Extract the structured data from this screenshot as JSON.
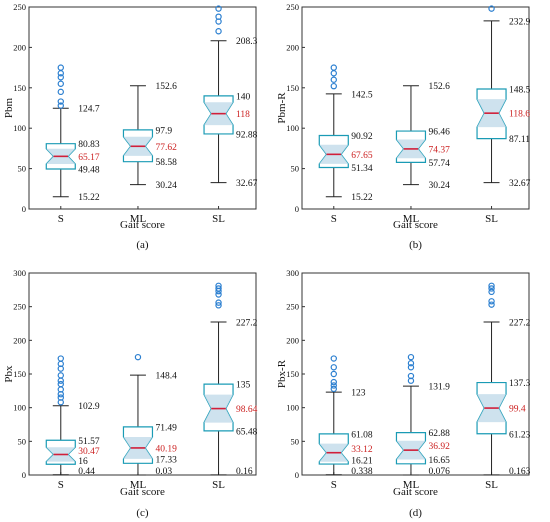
{
  "chart_data": [
    {
      "type": "box",
      "panel_label": "(a)",
      "xlabel": "Gait score",
      "ylabel": "Pbm",
      "ylim": [
        0,
        250
      ],
      "yticks": [
        0,
        50,
        100,
        150,
        200,
        250
      ],
      "categories": [
        "S",
        "ML",
        "SL"
      ],
      "boxes": [
        {
          "category": "S",
          "whisker_low": 15.22,
          "q1": 49.48,
          "median": 65.17,
          "q3": 80.83,
          "whisker_high": 124.7,
          "whisker_low_label": "15.22",
          "q1_label": "49.48",
          "median_label": "65.17",
          "q3_label": "80.83",
          "whisker_high_label": "124.7",
          "outliers": [
            128,
            133,
            145,
            155,
            163,
            168,
            175
          ]
        },
        {
          "category": "ML",
          "whisker_low": 30.24,
          "q1": 58.58,
          "median": 77.62,
          "q3": 97.9,
          "whisker_high": 152.6,
          "whisker_low_label": "30.24",
          "q1_label": "58.58",
          "median_label": "77.62",
          "q3_label": "97.9",
          "whisker_high_label": "152.6",
          "outliers": []
        },
        {
          "category": "SL",
          "whisker_low": 32.67,
          "q1": 92.88,
          "median": 118,
          "q3": 140,
          "whisker_high": 208.3,
          "whisker_low_label": "32.67",
          "q1_label": "92.88",
          "median_label": "118",
          "q3_label": "140",
          "whisker_high_label": "208.3",
          "outliers": [
            220,
            232,
            238,
            248
          ]
        }
      ]
    },
    {
      "type": "box",
      "panel_label": "(b)",
      "xlabel": "Gait score",
      "ylabel": "Pbm-R",
      "ylim": [
        0,
        250
      ],
      "yticks": [
        0,
        50,
        100,
        150,
        200,
        250
      ],
      "categories": [
        "S",
        "ML",
        "SL"
      ],
      "boxes": [
        {
          "category": "S",
          "whisker_low": 15.22,
          "q1": 51.34,
          "median": 67.65,
          "q3": 90.92,
          "whisker_high": 142.5,
          "whisker_low_label": "15.22",
          "q1_label": "51.34",
          "median_label": "67.65",
          "q3_label": "90.92",
          "whisker_high_label": "142.5",
          "outliers": [
            152,
            160,
            168,
            175
          ]
        },
        {
          "category": "ML",
          "whisker_low": 30.24,
          "q1": 57.74,
          "median": 74.37,
          "q3": 96.46,
          "whisker_high": 152.6,
          "whisker_low_label": "30.24",
          "q1_label": "57.74",
          "median_label": "74.37",
          "q3_label": "96.46",
          "whisker_high_label": "152.6",
          "outliers": []
        },
        {
          "category": "SL",
          "whisker_low": 32.67,
          "q1": 87.11,
          "median": 118.6,
          "q3": 148.5,
          "whisker_high": 232.9,
          "whisker_low_label": "32.67",
          "q1_label": "87.11",
          "median_label": "118.6",
          "q3_label": "148.5",
          "whisker_high_label": "232.9",
          "outliers": [
            248
          ]
        }
      ]
    },
    {
      "type": "box",
      "panel_label": "(c)",
      "xlabel": "Gait score",
      "ylabel": "Pbx",
      "ylim": [
        0,
        300
      ],
      "yticks": [
        0,
        50,
        100,
        150,
        200,
        250,
        300
      ],
      "categories": [
        "S",
        "ML",
        "SL"
      ],
      "boxes": [
        {
          "category": "S",
          "whisker_low": 0.44,
          "q1": 16,
          "median": 30.47,
          "q3": 51.57,
          "whisker_high": 102.9,
          "whisker_low_label": "0.44",
          "q1_label": "16",
          "median_label": "30.47",
          "q3_label": "51.57",
          "whisker_high_label": "102.9",
          "outliers": [
            108,
            115,
            120,
            127,
            135,
            140,
            148,
            158,
            165,
            173
          ]
        },
        {
          "category": "ML",
          "whisker_low": 0.03,
          "q1": 17.33,
          "median": 40.19,
          "q3": 71.49,
          "whisker_high": 148.4,
          "whisker_low_label": "0.03",
          "q1_label": "17.33",
          "median_label": "40.19",
          "q3_label": "71.49",
          "whisker_high_label": "148.4",
          "outliers": [
            175
          ]
        },
        {
          "category": "SL",
          "whisker_low": 0.16,
          "q1": 65.48,
          "median": 98.64,
          "q3": 135,
          "whisker_high": 227.2,
          "whisker_low_label": "0.16",
          "q1_label": "65.48",
          "median_label": "98.64",
          "q3_label": "135",
          "whisker_high_label": "227.2",
          "outliers": [
            252,
            256,
            268,
            273,
            277,
            281
          ]
        }
      ]
    },
    {
      "type": "box",
      "panel_label": "(d)",
      "xlabel": "Gait score",
      "ylabel": "Pbx-R",
      "ylim": [
        0,
        300
      ],
      "yticks": [
        0,
        50,
        100,
        150,
        200,
        250,
        300
      ],
      "categories": [
        "S",
        "ML",
        "SL"
      ],
      "boxes": [
        {
          "category": "S",
          "whisker_low": 0.338,
          "q1": 16.21,
          "median": 33.12,
          "q3": 61.08,
          "whisker_high": 123,
          "whisker_low_label": "0.338",
          "q1_label": "16.21",
          "median_label": "33.12",
          "q3_label": "61.08",
          "whisker_high_label": "123",
          "outliers": [
            128,
            133,
            138,
            150,
            160,
            173
          ]
        },
        {
          "category": "ML",
          "whisker_low": 0.076,
          "q1": 16.65,
          "median": 36.92,
          "q3": 62.88,
          "whisker_high": 131.9,
          "whisker_low_label": "0.076",
          "q1_label": "16.65",
          "median_label": "36.92",
          "q3_label": "62.88",
          "whisker_high_label": "131.9",
          "outliers": [
            140,
            147,
            160,
            166,
            175
          ]
        },
        {
          "category": "SL",
          "whisker_low": 0.163,
          "q1": 61.23,
          "median": 99.4,
          "q3": 137.3,
          "whisker_high": 227.2,
          "whisker_low_label": "0.163",
          "q1_label": "61.23",
          "median_label": "99.4",
          "q3_label": "137.3",
          "whisker_high_label": "227.2",
          "outliers": [
            253,
            258,
            272,
            277,
            281
          ]
        }
      ]
    }
  ],
  "colors": {
    "box_fill": "#ffffff",
    "box_stroke": "#1a9bb5",
    "notch_fill": "#c5ddeb",
    "median_line": "#d11f3a",
    "whisker": "#222222",
    "outlier": "#2b7fd0",
    "median_label": "#cc2222",
    "axis": "#333333"
  }
}
